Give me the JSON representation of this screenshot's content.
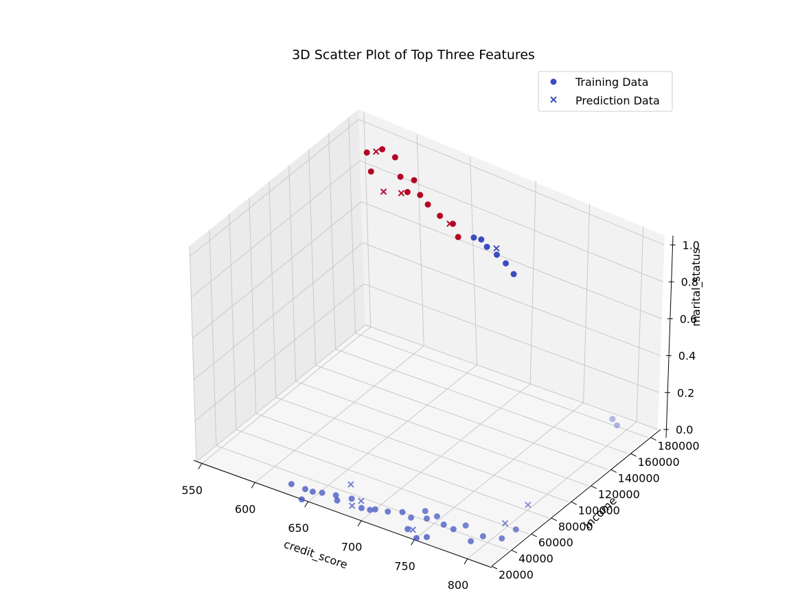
{
  "chart_data": {
    "type": "scatter",
    "title": "3D Scatter Plot of Top Three Features",
    "xlabel": "credit_score",
    "ylabel": "income",
    "zlabel": "marital_status",
    "xlim": [
      545,
      820
    ],
    "ylim": [
      20000,
      190000
    ],
    "zlim": [
      0,
      1.05
    ],
    "x_ticks": [
      "550",
      "600",
      "650",
      "700",
      "750",
      "800"
    ],
    "y_ticks": [
      "20000",
      "40000",
      "60000",
      "80000",
      "100000",
      "120000",
      "140000",
      "160000",
      "180000"
    ],
    "z_ticks": [
      "0.0",
      "0.2",
      "0.4",
      "0.6",
      "0.8",
      "1.0"
    ],
    "grid": true,
    "legend": {
      "position": "top-right",
      "entries": [
        {
          "label": "Training Data",
          "marker": "circle"
        },
        {
          "label": "Prediction Data",
          "marker": "x"
        }
      ]
    },
    "colors": {
      "class_high": "#b40426",
      "class_low": "#3b4cc0",
      "grid": "#c8c8c8",
      "pane_back": "#f2f2f2",
      "pane_side": "#ebebeb",
      "pane_floor": "#f6f6f6"
    },
    "series": [
      {
        "name": "Training Data",
        "marker": "circle",
        "points": [
          {
            "x": 575,
            "y": 166000,
            "z": 1,
            "c": "high"
          },
          {
            "x": 582,
            "y": 174000,
            "z": 1,
            "c": "high"
          },
          {
            "x": 592,
            "y": 152000,
            "z": 1,
            "c": "high"
          },
          {
            "x": 596,
            "y": 172000,
            "z": 1,
            "c": "high"
          },
          {
            "x": 614,
            "y": 158000,
            "z": 1,
            "c": "high"
          },
          {
            "x": 625,
            "y": 160000,
            "z": 1,
            "c": "high"
          },
          {
            "x": 630,
            "y": 148000,
            "z": 1,
            "c": "high"
          },
          {
            "x": 640,
            "y": 150000,
            "z": 1,
            "c": "high"
          },
          {
            "x": 652,
            "y": 145000,
            "z": 1,
            "c": "high"
          },
          {
            "x": 668,
            "y": 140000,
            "z": 1,
            "c": "high"
          },
          {
            "x": 682,
            "y": 138000,
            "z": 1,
            "c": "high"
          },
          {
            "x": 688,
            "y": 125000,
            "z": 1,
            "c": "high"
          },
          {
            "x": 698,
            "y": 130000,
            "z": 1,
            "c": "low"
          },
          {
            "x": 704,
            "y": 131000,
            "z": 1,
            "c": "low"
          },
          {
            "x": 713,
            "y": 127000,
            "z": 1,
            "c": "low"
          },
          {
            "x": 725,
            "y": 124000,
            "z": 1,
            "c": "low"
          },
          {
            "x": 737,
            "y": 120000,
            "z": 1,
            "c": "low"
          },
          {
            "x": 750,
            "y": 114000,
            "z": 1,
            "c": "low"
          },
          {
            "x": 625,
            "y": 30000,
            "z": 0,
            "c": "low"
          },
          {
            "x": 638,
            "y": 30000,
            "z": 0,
            "c": "low"
          },
          {
            "x": 645,
            "y": 30000,
            "z": 0,
            "c": "low"
          },
          {
            "x": 644,
            "y": 20000,
            "z": 0,
            "c": "low"
          },
          {
            "x": 652,
            "y": 32000,
            "z": 0,
            "c": "low"
          },
          {
            "x": 663,
            "y": 34000,
            "z": 0,
            "c": "low"
          },
          {
            "x": 668,
            "y": 30000,
            "z": 0,
            "c": "low"
          },
          {
            "x": 676,
            "y": 36000,
            "z": 0,
            "c": "low"
          },
          {
            "x": 690,
            "y": 31000,
            "z": 0,
            "c": "low"
          },
          {
            "x": 697,
            "y": 32000,
            "z": 0,
            "c": "low"
          },
          {
            "x": 700,
            "y": 34000,
            "z": 0,
            "c": "low"
          },
          {
            "x": 710,
            "y": 36000,
            "z": 0,
            "c": "low"
          },
          {
            "x": 720,
            "y": 40000,
            "z": 0,
            "c": "low"
          },
          {
            "x": 730,
            "y": 38000,
            "z": 0,
            "c": "low"
          },
          {
            "x": 734,
            "y": 48000,
            "z": 0,
            "c": "low"
          },
          {
            "x": 737,
            "y": 27000,
            "z": 0,
            "c": "low"
          },
          {
            "x": 741,
            "y": 42000,
            "z": 0,
            "c": "low"
          },
          {
            "x": 746,
            "y": 47000,
            "z": 0,
            "c": "low"
          },
          {
            "x": 750,
            "y": 22000,
            "z": 0,
            "c": "low"
          },
          {
            "x": 756,
            "y": 26000,
            "z": 0,
            "c": "low"
          },
          {
            "x": 757,
            "y": 42000,
            "z": 0,
            "c": "low"
          },
          {
            "x": 767,
            "y": 41000,
            "z": 0,
            "c": "low"
          },
          {
            "x": 772,
            "y": 48000,
            "z": 0,
            "c": "low"
          },
          {
            "x": 788,
            "y": 36000,
            "z": 0,
            "c": "low"
          },
          {
            "x": 792,
            "y": 44000,
            "z": 0,
            "c": "low"
          },
          {
            "x": 806,
            "y": 48000,
            "z": 0,
            "c": "low"
          },
          {
            "x": 808,
            "y": 60000,
            "z": 0,
            "c": "low"
          },
          {
            "x": 782,
            "y": 185000,
            "z": 0,
            "c": "low"
          },
          {
            "x": 790,
            "y": 181000,
            "z": 0,
            "c": "low"
          }
        ]
      },
      {
        "name": "Prediction Data",
        "marker": "x",
        "points": [
          {
            "x": 580,
            "y": 170000,
            "z": 1,
            "c": "high"
          },
          {
            "x": 615,
            "y": 140000,
            "z": 1,
            "c": "high"
          },
          {
            "x": 627,
            "y": 145000,
            "z": 1,
            "c": "high"
          },
          {
            "x": 680,
            "y": 137000,
            "z": 1,
            "c": "high"
          },
          {
            "x": 720,
            "y": 129000,
            "z": 1,
            "c": "low"
          },
          {
            "x": 664,
            "y": 48000,
            "z": 0,
            "c": "low"
          },
          {
            "x": 682,
            "y": 30000,
            "z": 0,
            "c": "low"
          },
          {
            "x": 684,
            "y": 37000,
            "z": 0,
            "c": "low"
          },
          {
            "x": 741,
            "y": 28000,
            "z": 0,
            "c": "low"
          },
          {
            "x": 796,
            "y": 62000,
            "z": 0,
            "c": "low"
          },
          {
            "x": 796,
            "y": 85000,
            "z": 0,
            "c": "low"
          }
        ]
      }
    ]
  }
}
